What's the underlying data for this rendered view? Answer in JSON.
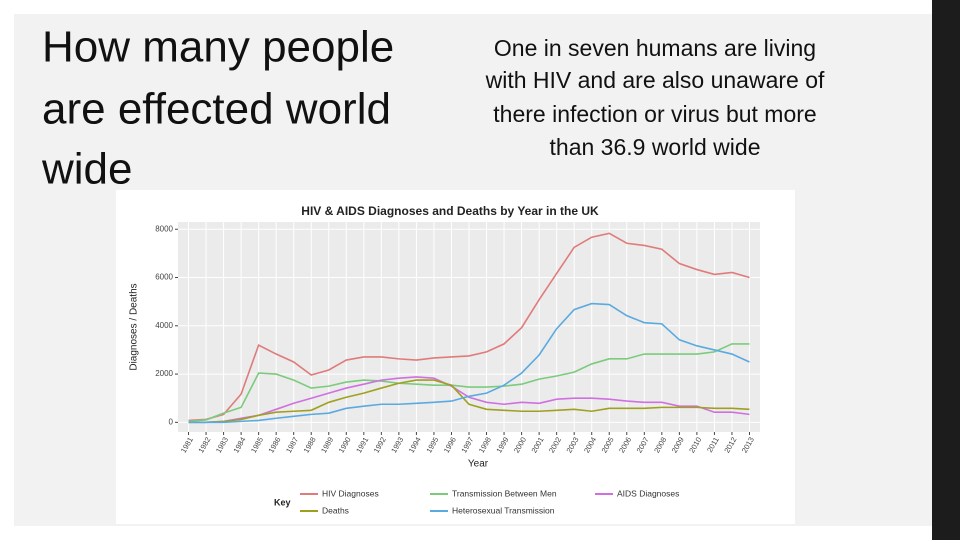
{
  "slide": {
    "title": [
      "How many people",
      "are effected world",
      "wide"
    ],
    "body": [
      "One in seven humans are living",
      "with HIV and are also unaware of",
      "there infection or virus but more",
      "than 36.9 world wide"
    ]
  },
  "chart_data": {
    "type": "line",
    "title": "HIV & AIDS Diagnoses and Deaths by Year in the UK",
    "x_label": "Year",
    "y_label": "Diagnoses / Deaths",
    "legend_title": "Key",
    "x": [
      1981,
      1982,
      1983,
      1984,
      1985,
      1986,
      1987,
      1988,
      1989,
      1990,
      1991,
      1992,
      1993,
      1994,
      1995,
      1996,
      1997,
      1998,
      1999,
      2000,
      2001,
      2002,
      2003,
      2004,
      2005,
      2006,
      2007,
      2008,
      2009,
      2010,
      2011,
      2012,
      2013
    ],
    "xlim": [
      1980.4,
      2013.6
    ],
    "xticks": [
      1981,
      1982,
      1983,
      1984,
      1985,
      1986,
      1987,
      1988,
      1989,
      1990,
      1991,
      1992,
      1993,
      1994,
      1995,
      1996,
      1997,
      1998,
      1999,
      2000,
      2001,
      2002,
      2003,
      2004,
      2005,
      2006,
      2007,
      2008,
      2009,
      2010,
      2011,
      2012,
      2013
    ],
    "ylim": [
      -400,
      8300
    ],
    "yticks": [
      0,
      2000,
      4000,
      6000,
      8000
    ],
    "grid": true,
    "series": [
      {
        "name": "HIV Diagnoses",
        "color": "#e07b7b",
        "values": [
          80,
          120,
          330,
          1170,
          3200,
          2830,
          2500,
          1960,
          2170,
          2580,
          2710,
          2710,
          2630,
          2580,
          2670,
          2710,
          2750,
          2920,
          3250,
          3920,
          5080,
          6170,
          7250,
          7670,
          7830,
          7420,
          7330,
          7170,
          6580,
          6330,
          6130,
          6210,
          6000
        ]
      },
      {
        "name": "Transmission Between Men",
        "color": "#7ccb7c",
        "values": [
          40,
          100,
          380,
          620,
          2040,
          2000,
          1750,
          1420,
          1500,
          1670,
          1750,
          1710,
          1620,
          1580,
          1540,
          1540,
          1460,
          1460,
          1500,
          1580,
          1790,
          1920,
          2080,
          2420,
          2630,
          2630,
          2830,
          2830,
          2830,
          2830,
          2920,
          3250,
          3250
        ]
      },
      {
        "name": "AIDS Diagnoses",
        "color": "#d070e0",
        "values": [
          0,
          0,
          40,
          170,
          290,
          540,
          790,
          1000,
          1210,
          1420,
          1580,
          1750,
          1830,
          1880,
          1830,
          1500,
          1040,
          830,
          750,
          830,
          790,
          960,
          1000,
          1000,
          960,
          880,
          830,
          830,
          670,
          670,
          420,
          420,
          330
        ]
      },
      {
        "name": "Deaths",
        "color": "#a0a020",
        "values": [
          0,
          0,
          40,
          120,
          290,
          420,
          460,
          500,
          830,
          1040,
          1210,
          1420,
          1620,
          1750,
          1750,
          1540,
          750,
          540,
          500,
          460,
          460,
          500,
          540,
          460,
          580,
          580,
          580,
          620,
          620,
          620,
          580,
          580,
          540
        ]
      },
      {
        "name": "Heterosexual Transmission",
        "color": "#5aaae0",
        "values": [
          0,
          0,
          0,
          40,
          80,
          170,
          250,
          330,
          380,
          580,
          670,
          750,
          750,
          790,
          830,
          880,
          1080,
          1210,
          1540,
          2040,
          2790,
          3880,
          4670,
          4920,
          4880,
          4420,
          4130,
          4080,
          3420,
          3170,
          3000,
          2830,
          2500
        ]
      }
    ]
  }
}
